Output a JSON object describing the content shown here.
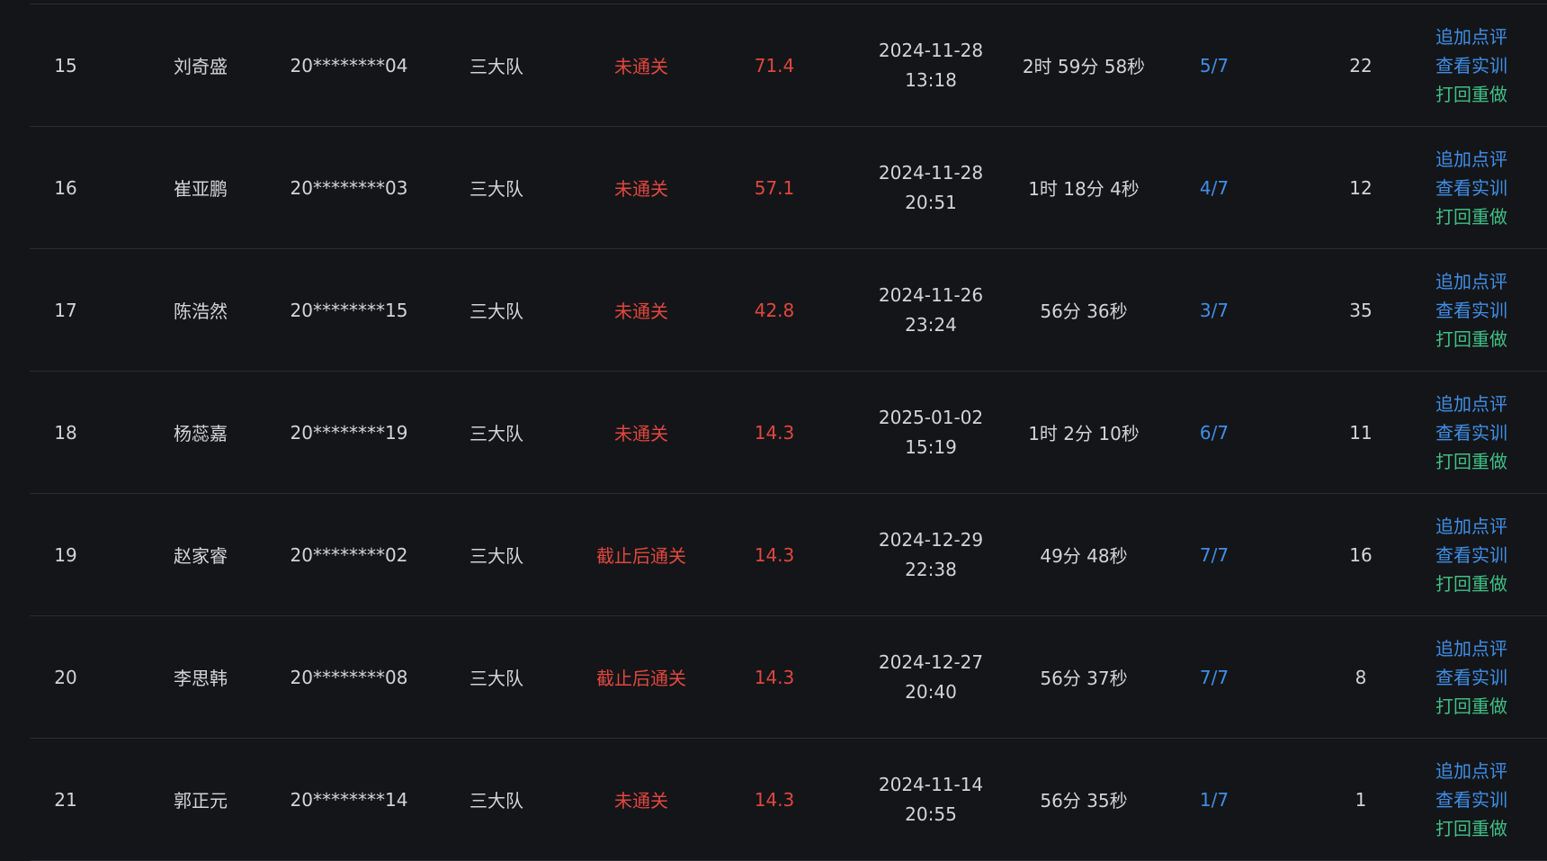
{
  "table": {
    "colors": {
      "background": "#141518",
      "text": "#d2d4d8",
      "status_red": "#e0473f",
      "link_blue": "#3f8fe8",
      "link_green": "#3fbf86",
      "divider": "#2a2c31"
    },
    "rows": [
      {
        "no": "15",
        "name": "刘奇盛",
        "id": "20********04",
        "team": "三大队",
        "status": "未通关",
        "score": "71.4",
        "date": "2024-11-28",
        "time": "13:18",
        "duration": "2时 59分 58秒",
        "progress": "5/7",
        "count": "22",
        "actions": {
          "comment": "追加点评",
          "view": "查看实训",
          "redo": "打回重做"
        }
      },
      {
        "no": "16",
        "name": "崔亚鹏",
        "id": "20********03",
        "team": "三大队",
        "status": "未通关",
        "score": "57.1",
        "date": "2024-11-28",
        "time": "20:51",
        "duration": "1时 18分 4秒",
        "progress": "4/7",
        "count": "12",
        "actions": {
          "comment": "追加点评",
          "view": "查看实训",
          "redo": "打回重做"
        }
      },
      {
        "no": "17",
        "name": "陈浩然",
        "id": "20********15",
        "team": "三大队",
        "status": "未通关",
        "score": "42.8",
        "date": "2024-11-26",
        "time": "23:24",
        "duration": "56分 36秒",
        "progress": "3/7",
        "count": "35",
        "actions": {
          "comment": "追加点评",
          "view": "查看实训",
          "redo": "打回重做"
        }
      },
      {
        "no": "18",
        "name": "杨蕊嘉",
        "id": "20********19",
        "team": "三大队",
        "status": "未通关",
        "score": "14.3",
        "date": "2025-01-02",
        "time": "15:19",
        "duration": "1时 2分 10秒",
        "progress": "6/7",
        "count": "11",
        "actions": {
          "comment": "追加点评",
          "view": "查看实训",
          "redo": "打回重做"
        }
      },
      {
        "no": "19",
        "name": "赵家睿",
        "id": "20********02",
        "team": "三大队",
        "status": "截止后通关",
        "score": "14.3",
        "date": "2024-12-29",
        "time": "22:38",
        "duration": "49分 48秒",
        "progress": "7/7",
        "count": "16",
        "actions": {
          "comment": "追加点评",
          "view": "查看实训",
          "redo": "打回重做"
        }
      },
      {
        "no": "20",
        "name": "李思韩",
        "id": "20********08",
        "team": "三大队",
        "status": "截止后通关",
        "score": "14.3",
        "date": "2024-12-27",
        "time": "20:40",
        "duration": "56分 37秒",
        "progress": "7/7",
        "count": "8",
        "actions": {
          "comment": "追加点评",
          "view": "查看实训",
          "redo": "打回重做"
        }
      },
      {
        "no": "21",
        "name": "郭正元",
        "id": "20********14",
        "team": "三大队",
        "status": "未通关",
        "score": "14.3",
        "date": "2024-11-14",
        "time": "20:55",
        "duration": "56分 35秒",
        "progress": "1/7",
        "count": "1",
        "actions": {
          "comment": "追加点评",
          "view": "查看实训",
          "redo": "打回重做"
        }
      }
    ]
  }
}
